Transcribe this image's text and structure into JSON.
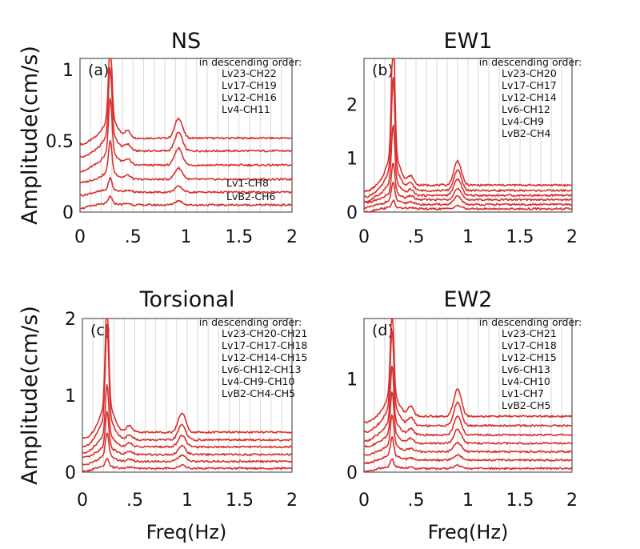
{
  "axis_labels": {
    "ylabel": "Amplitude(cm/s)",
    "xlabel": "Freq(Hz)"
  },
  "color": "#d7312f",
  "chart_data": [
    {
      "type": "line",
      "panel": "(a)",
      "title": "NS",
      "xlim": [
        0,
        2
      ],
      "ylim": [
        0,
        1.08
      ],
      "xticks": [
        "0",
        ".5",
        "1",
        "1.5",
        "2"
      ],
      "yticks": [
        {
          "v": 0,
          "label": "0"
        },
        {
          "v": 0.5,
          "label": "0.5"
        },
        {
          "v": 1,
          "label": "1"
        }
      ],
      "order_label": "in descending order:",
      "legend_top": [
        "Lv23-CH22",
        "Lv17-CH19",
        "Lv12-CH16",
        "Lv4-CH11"
      ],
      "legend_bottom": [
        "Lv1-CH8",
        "LvB2-CH6"
      ],
      "peaks": [
        0.285,
        0.93
      ],
      "series": [
        {
          "name": "Lv23-CH22",
          "base": 0.52,
          "peak_amp": 0.55,
          "second_amp": 0.14
        },
        {
          "name": "Lv17-CH19",
          "base": 0.43,
          "peak_amp": 0.47,
          "second_amp": 0.13
        },
        {
          "name": "Lv12-CH16",
          "base": 0.33,
          "peak_amp": 0.38,
          "second_amp": 0.12
        },
        {
          "name": "Lv4-CH11",
          "base": 0.23,
          "peak_amp": 0.22,
          "second_amp": 0.08
        },
        {
          "name": "Lv1-CH8",
          "base": 0.14,
          "peak_amp": 0.08,
          "second_amp": 0.04
        },
        {
          "name": "LvB2-CH6",
          "base": 0.05,
          "peak_amp": 0.05,
          "second_amp": 0.03
        }
      ]
    },
    {
      "type": "line",
      "panel": "(b)",
      "title": "EW1",
      "xlim": [
        0,
        2
      ],
      "ylim": [
        0,
        2.85
      ],
      "xticks": [
        "0",
        ".5",
        "1",
        "1.5",
        "2"
      ],
      "yticks": [
        {
          "v": 0,
          "label": "0"
        },
        {
          "v": 1,
          "label": "1"
        },
        {
          "v": 2,
          "label": "2"
        }
      ],
      "order_label": "in descending order:",
      "legend_top": [
        "Lv23-CH20",
        "Lv17-CH17",
        "Lv12-CH14",
        "Lv6-CH12",
        "Lv4-CH9",
        "LvB2-CH4"
      ],
      "legend_bottom": [],
      "peaks": [
        0.28,
        0.9
      ],
      "series": [
        {
          "name": "Lv23-CH20",
          "base": 0.5,
          "peak_amp": 2.3,
          "second_amp": 0.45
        },
        {
          "name": "Lv17-CH17",
          "base": 0.4,
          "peak_amp": 1.7,
          "second_amp": 0.38
        },
        {
          "name": "Lv12-CH14",
          "base": 0.31,
          "peak_amp": 1.05,
          "second_amp": 0.3
        },
        {
          "name": "Lv6-CH12",
          "base": 0.23,
          "peak_amp": 0.55,
          "second_amp": 0.2
        },
        {
          "name": "Lv4-CH9",
          "base": 0.14,
          "peak_amp": 0.33,
          "second_amp": 0.15
        },
        {
          "name": "LvB2-CH4",
          "base": 0.06,
          "peak_amp": 0.12,
          "second_amp": 0.06
        }
      ]
    },
    {
      "type": "line",
      "panel": "(c)",
      "title": "Torsional",
      "xlim": [
        0,
        2
      ],
      "ylim": [
        0,
        2.0
      ],
      "xticks": [
        "0",
        ".5",
        "1",
        "1.5",
        "2"
      ],
      "yticks": [
        {
          "v": 0,
          "label": "0"
        },
        {
          "v": 1,
          "label": "1"
        },
        {
          "v": 2,
          "label": "2"
        }
      ],
      "order_label": "in descending order:",
      "legend_top": [
        "Lv23-CH20-CH21",
        "Lv17-CH17-CH18",
        "Lv12-CH14-CH15",
        "Lv6-CH12-CH13",
        "Lv4-CH9-CH10",
        "LvB2-CH4-CH5"
      ],
      "legend_bottom": [],
      "peaks": [
        0.235,
        0.95
      ],
      "series": [
        {
          "name": "Lv23-CH20-CH21",
          "base": 0.52,
          "peak_amp": 1.45,
          "second_amp": 0.25
        },
        {
          "name": "Lv17-CH17-CH18",
          "base": 0.42,
          "peak_amp": 1.2,
          "second_amp": 0.2
        },
        {
          "name": "Lv12-CH14-CH15",
          "base": 0.33,
          "peak_amp": 0.65,
          "second_amp": 0.15
        },
        {
          "name": "Lv6-CH12-CH13",
          "base": 0.23,
          "peak_amp": 0.45,
          "second_amp": 0.11
        },
        {
          "name": "Lv4-CH9-CH10",
          "base": 0.14,
          "peak_amp": 0.3,
          "second_amp": 0.08
        },
        {
          "name": "LvB2-CH4-CH5",
          "base": 0.05,
          "peak_amp": 0.1,
          "second_amp": 0.04
        }
      ]
    },
    {
      "type": "line",
      "panel": "(d)",
      "title": "EW2",
      "xlim": [
        0,
        2
      ],
      "ylim": [
        0,
        1.65
      ],
      "xticks": [
        "0",
        ".5",
        "1",
        "1.5",
        "2"
      ],
      "yticks": [
        {
          "v": 0,
          "label": "0"
        },
        {
          "v": 1,
          "label": "1"
        }
      ],
      "order_label": "in descending order:",
      "legend_top": [
        "Lv23-CH21",
        "Lv17-CH18",
        "Lv12-CH15",
        "Lv6-CH13",
        "Lv4-CH10",
        "Lv1-CH7",
        "LvB2-CH5"
      ],
      "legend_bottom": [],
      "peaks": [
        0.27,
        0.9
      ],
      "series": [
        {
          "name": "Lv23-CH21",
          "base": 0.6,
          "peak_amp": 0.95,
          "second_amp": 0.3
        },
        {
          "name": "Lv17-CH18",
          "base": 0.5,
          "peak_amp": 0.83,
          "second_amp": 0.25
        },
        {
          "name": "Lv12-CH15",
          "base": 0.4,
          "peak_amp": 0.6,
          "second_amp": 0.2
        },
        {
          "name": "Lv6-CH13",
          "base": 0.31,
          "peak_amp": 0.45,
          "second_amp": 0.15
        },
        {
          "name": "Lv4-CH10",
          "base": 0.22,
          "peak_amp": 0.32,
          "second_amp": 0.1
        },
        {
          "name": "Lv1-CH7",
          "base": 0.13,
          "peak_amp": 0.2,
          "second_amp": 0.06
        },
        {
          "name": "LvB2-CH5",
          "base": 0.04,
          "peak_amp": 0.08,
          "second_amp": 0.03
        }
      ]
    }
  ]
}
